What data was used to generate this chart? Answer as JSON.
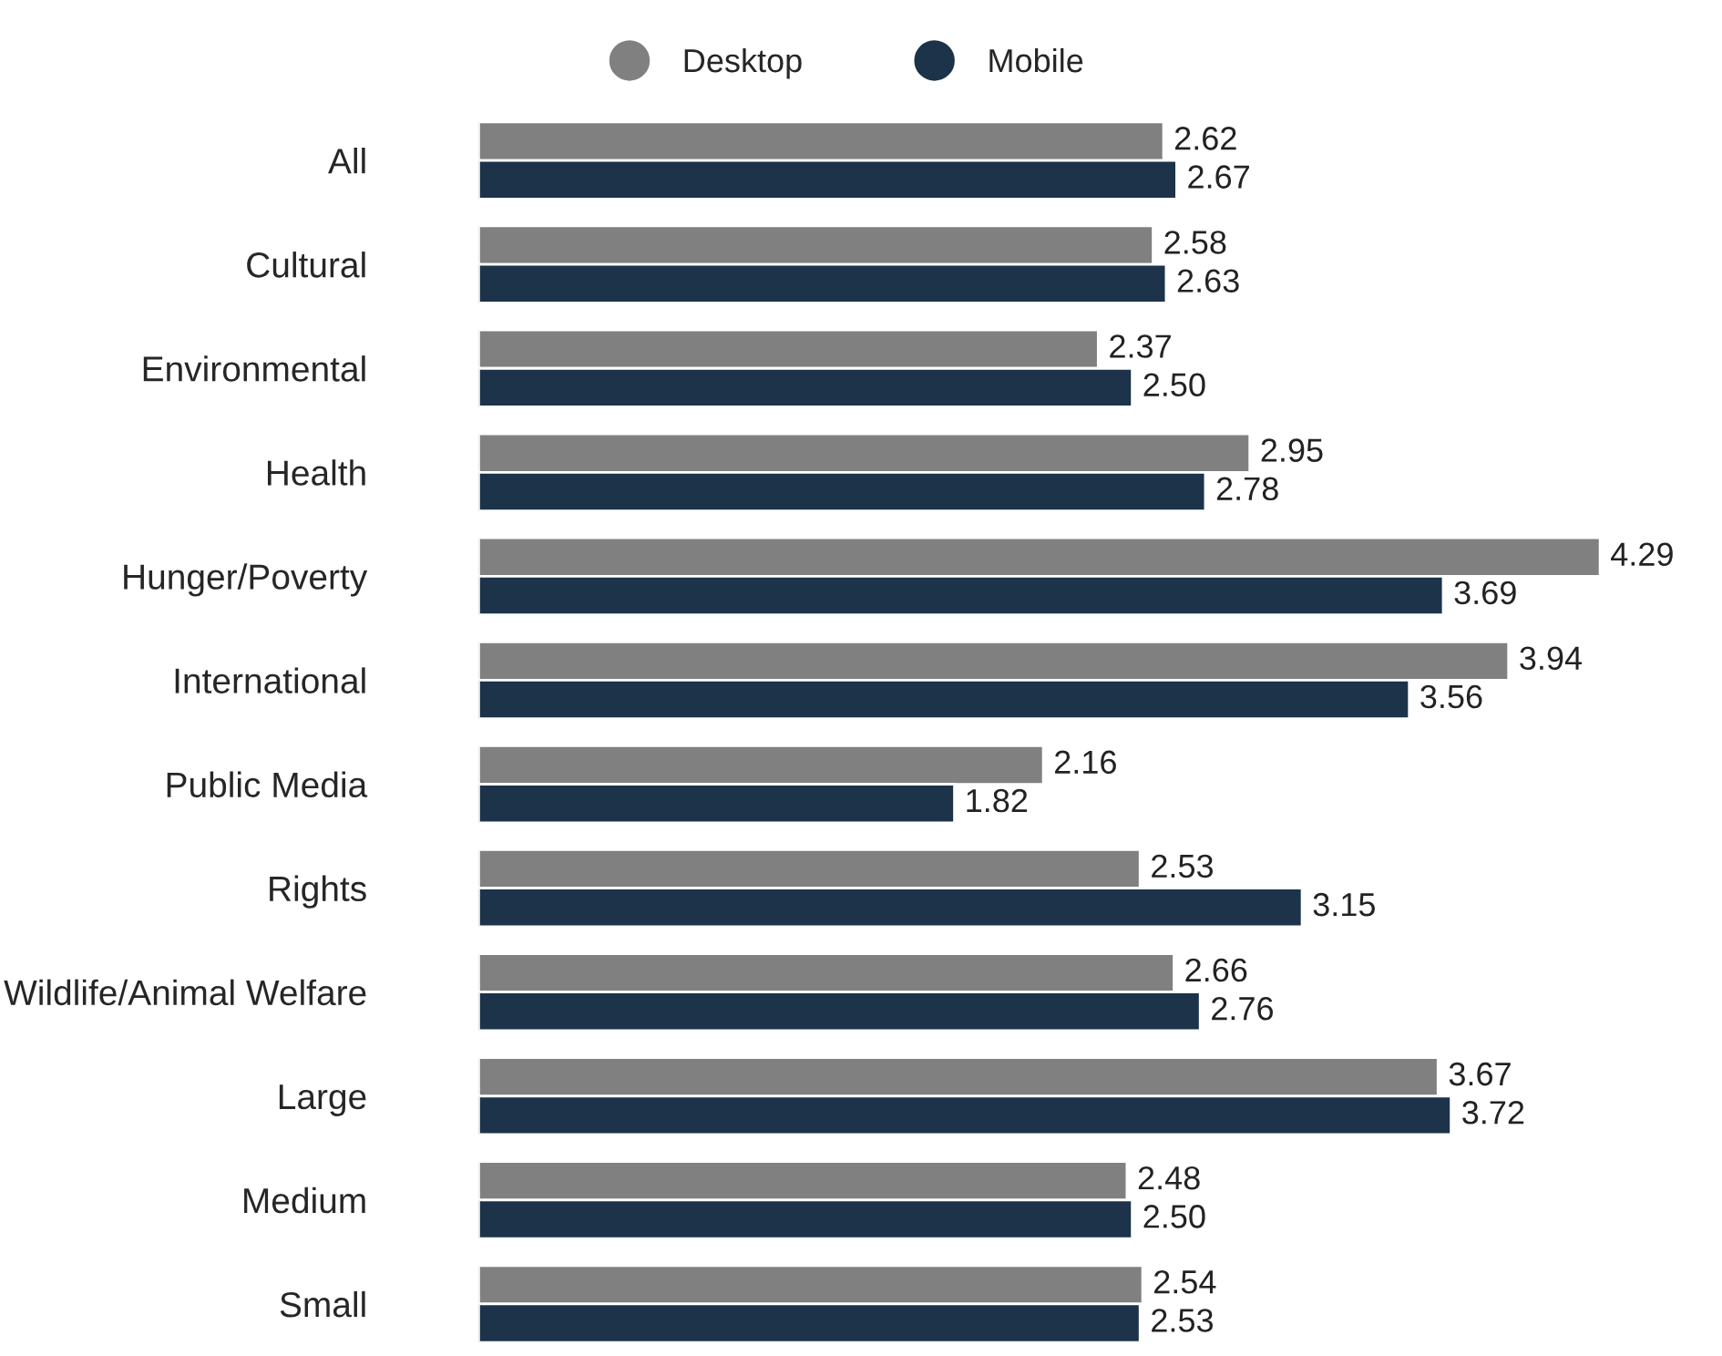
{
  "chart_data": {
    "type": "bar",
    "orientation": "horizontal",
    "legend": "top",
    "grid": false,
    "marker": "circle",
    "categories": [
      "All",
      "Cultural",
      "Environmental",
      "Health",
      "Hunger/Poverty",
      "International",
      "Public Media",
      "Rights",
      "Wildlife/Animal Welfare",
      "Large",
      "Medium",
      "Small"
    ],
    "series": [
      {
        "name": "Desktop",
        "color": "#808080",
        "values": [
          2.62,
          2.58,
          2.37,
          2.95,
          4.29,
          3.94,
          2.16,
          2.53,
          2.66,
          3.67,
          2.48,
          2.54
        ],
        "value_labels": [
          "2.62",
          "2.58",
          "2.37",
          "2.95",
          "4.29",
          "3.94",
          "2.16",
          "2.53",
          "2.66",
          "3.67",
          "2.48",
          "2.54"
        ]
      },
      {
        "name": "Mobile",
        "color": "#1c3349",
        "values": [
          2.67,
          2.63,
          2.5,
          2.78,
          3.69,
          3.56,
          1.82,
          3.15,
          2.76,
          3.72,
          2.5,
          2.53
        ],
        "value_labels": [
          "2.67",
          "2.63",
          "2.50",
          "2.78",
          "3.69",
          "3.56",
          "1.82",
          "3.15",
          "2.76",
          "3.72",
          "2.50",
          "2.53"
        ]
      }
    ]
  }
}
